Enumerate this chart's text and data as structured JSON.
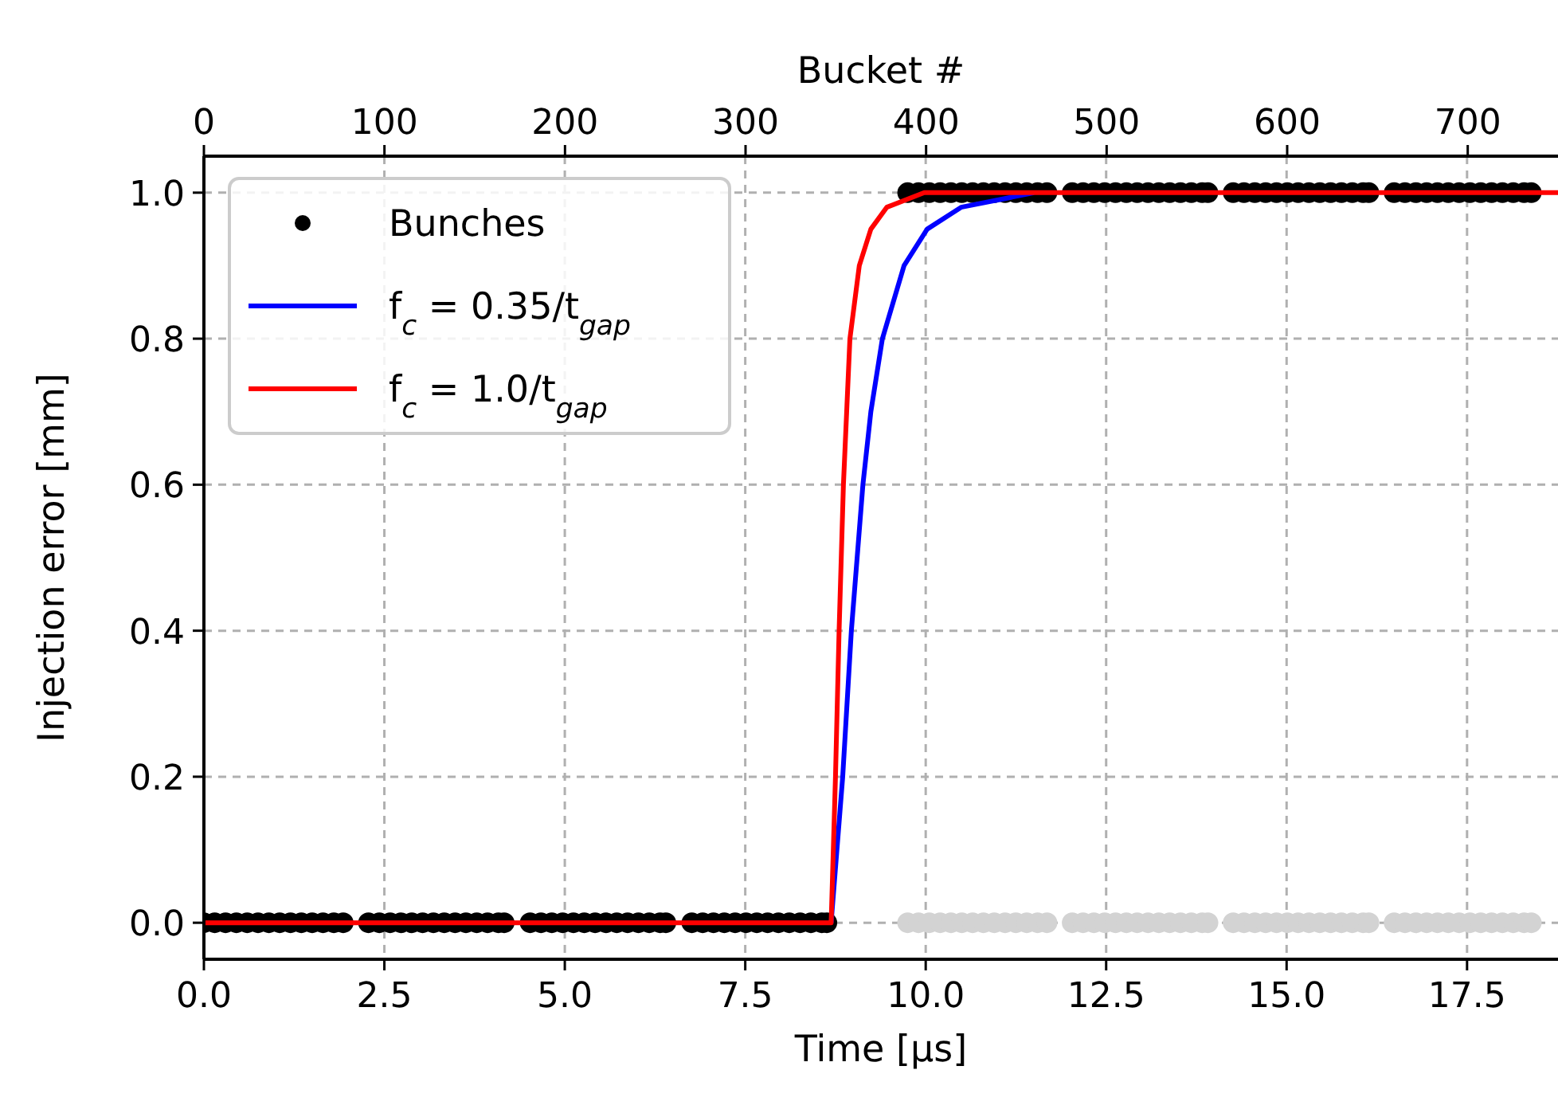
{
  "chart_data": {
    "type": "line",
    "xlabel": "Time [μs]",
    "ylabel": "Injection error [mm]",
    "x2label": "Bucket #",
    "xlim": [
      0,
      18.76
    ],
    "ylim": [
      -0.05,
      1.05
    ],
    "x2lim": [
      0,
      750
    ],
    "xticks": [
      {
        "value": 0,
        "label": "0.0"
      },
      2.5,
      {
        "value": 5,
        "label": "5.0"
      },
      7.5,
      {
        "value": 10,
        "label": "10.0"
      },
      12.5,
      {
        "value": 15,
        "label": "15.0"
      },
      17.5
    ],
    "yticks": [
      {
        "value": 0,
        "label": "0.0"
      },
      0.2,
      0.4,
      0.6,
      0.8,
      {
        "value": 1,
        "label": "1.0"
      }
    ],
    "x2ticks": [
      0,
      100,
      200,
      300,
      400,
      500,
      600,
      700
    ],
    "grid": true,
    "legend": "top left",
    "series": [
      {
        "name": "Bunches",
        "type": "scatter",
        "marker": "circle",
        "color": "#000000",
        "x": [
          0.0,
          0.15,
          0.3,
          0.45,
          0.6,
          0.75,
          0.9,
          1.05,
          1.2,
          1.35,
          1.5,
          1.65,
          1.8,
          1.93,
          2.28,
          2.43,
          2.58,
          2.73,
          2.88,
          3.03,
          3.18,
          3.33,
          3.48,
          3.63,
          3.78,
          3.93,
          4.08,
          4.16,
          4.52,
          4.67,
          4.82,
          4.97,
          5.12,
          5.27,
          5.42,
          5.57,
          5.72,
          5.87,
          6.02,
          6.17,
          6.32,
          6.4,
          6.76,
          6.91,
          7.06,
          7.21,
          7.36,
          7.51,
          7.66,
          7.81,
          7.96,
          8.11,
          8.26,
          8.41,
          8.56,
          8.63,
          9.75,
          9.9,
          10.05,
          10.2,
          10.35,
          10.5,
          10.65,
          10.8,
          10.95,
          11.1,
          11.25,
          11.4,
          11.55,
          11.68,
          12.03,
          12.18,
          12.33,
          12.48,
          12.63,
          12.78,
          12.93,
          13.08,
          13.23,
          13.38,
          13.53,
          13.68,
          13.83,
          13.91,
          14.26,
          14.41,
          14.56,
          14.71,
          14.86,
          15.01,
          15.16,
          15.31,
          15.46,
          15.61,
          15.76,
          15.91,
          16.06,
          16.14,
          16.49,
          16.64,
          16.79,
          16.94,
          17.09,
          17.24,
          17.39,
          17.54,
          17.69,
          17.84,
          17.99,
          18.14,
          18.29,
          18.39
        ],
        "values": [
          0,
          0,
          0,
          0,
          0,
          0,
          0,
          0,
          0,
          0,
          0,
          0,
          0,
          0,
          0,
          0,
          0,
          0,
          0,
          0,
          0,
          0,
          0,
          0,
          0,
          0,
          0,
          0,
          0,
          0,
          0,
          0,
          0,
          0,
          0,
          0,
          0,
          0,
          0,
          0,
          0,
          0,
          0,
          0,
          0,
          0,
          0,
          0,
          0,
          0,
          0,
          0,
          0,
          0,
          0,
          0,
          1,
          1,
          1,
          1,
          1,
          1,
          1,
          1,
          1,
          1,
          1,
          1,
          1,
          1,
          1,
          1,
          1,
          1,
          1,
          1,
          1,
          1,
          1,
          1,
          1,
          1,
          1,
          1,
          1,
          1,
          1,
          1,
          1,
          1,
          1,
          1,
          1,
          1,
          1,
          1,
          1,
          1,
          1,
          1,
          1,
          1,
          1,
          1,
          1,
          1,
          1,
          1,
          1,
          1,
          1,
          1
        ]
      },
      {
        "type": "scatter",
        "marker": "circle",
        "color": "#d3d3d3",
        "x": [
          9.75,
          9.9,
          10.05,
          10.2,
          10.35,
          10.5,
          10.65,
          10.8,
          10.95,
          11.1,
          11.25,
          11.4,
          11.55,
          11.68,
          12.03,
          12.18,
          12.33,
          12.48,
          12.63,
          12.78,
          12.93,
          13.08,
          13.23,
          13.38,
          13.53,
          13.68,
          13.83,
          13.91,
          14.26,
          14.41,
          14.56,
          14.71,
          14.86,
          15.01,
          15.16,
          15.31,
          15.46,
          15.61,
          15.76,
          15.91,
          16.06,
          16.14,
          16.49,
          16.64,
          16.79,
          16.94,
          17.09,
          17.24,
          17.39,
          17.54,
          17.69,
          17.84,
          17.99,
          18.14,
          18.29,
          18.39
        ],
        "values": [
          0,
          0,
          0,
          0,
          0,
          0,
          0,
          0,
          0,
          0,
          0,
          0,
          0,
          0,
          0,
          0,
          0,
          0,
          0,
          0,
          0,
          0,
          0,
          0,
          0,
          0,
          0,
          0,
          0,
          0,
          0,
          0,
          0,
          0,
          0,
          0,
          0,
          0,
          0,
          0,
          0,
          0,
          0,
          0,
          0,
          0,
          0,
          0,
          0,
          0,
          0,
          0,
          0,
          0,
          0,
          0
        ]
      },
      {
        "name": "f$_{c}$ = 0.35/t$_{gap}$",
        "type": "line",
        "color": "#0000ff",
        "line_style": "solid",
        "x": [
          8.69,
          8.85,
          8.97,
          9.13,
          9.24,
          9.4,
          9.7,
          10.02,
          10.49,
          11.0,
          11.5
        ],
        "values": [
          0,
          0.2,
          0.4,
          0.6,
          0.7,
          0.8,
          0.9,
          0.95,
          0.98,
          0.99,
          1.0
        ]
      },
      {
        "name": "f$_{c}$ = 1.0/t$_{gap}$",
        "type": "line",
        "color": "#ff0000",
        "line_style": "solid",
        "x": [
          0,
          8.69,
          8.75,
          8.8,
          8.86,
          8.95,
          9.08,
          9.24,
          9.46,
          9.98,
          18.76
        ],
        "values": [
          0,
          0,
          0.2,
          0.4,
          0.6,
          0.8,
          0.9,
          0.95,
          0.98,
          1.0,
          1.0
        ]
      }
    ]
  }
}
